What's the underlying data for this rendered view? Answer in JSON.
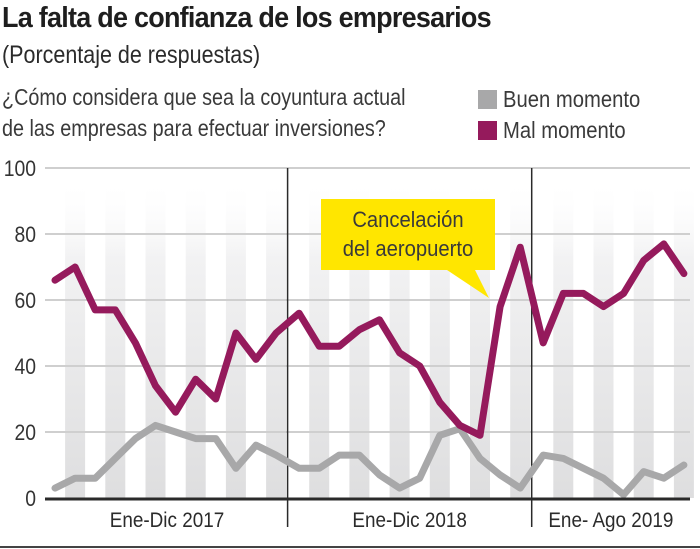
{
  "title": "La falta de confianza de los empresarios",
  "subtitle": "(Porcentaje de respuestas)",
  "question_lines": [
    "¿Cómo considera que sea la coyuntura actual",
    "de las empresas para efectuar inversiones?"
  ],
  "legend": [
    {
      "label": "Buen momento",
      "color": "#a8a8a9"
    },
    {
      "label": "Mal momento",
      "color": "#951a5c"
    }
  ],
  "annotation": {
    "lines": [
      "Cancelación",
      "del aeropuerto"
    ],
    "color": "#ffe600"
  },
  "chart_data": {
    "type": "line",
    "title": "La falta de confianza de los empresarios",
    "subtitle": "(Porcentaje de respuestas)",
    "xlabel": "",
    "ylabel": "",
    "ylim": [
      0,
      100
    ],
    "yticks": [
      0,
      20,
      40,
      60,
      80,
      100
    ],
    "grid": true,
    "legend_position": "top-right",
    "period_labels": [
      "Ene-Dic 2017",
      "Ene-Dic 2018",
      "Ene- Ago 2019"
    ],
    "period_lengths": [
      12,
      12,
      8
    ],
    "x": [
      "2017-01",
      "2017-02",
      "2017-03",
      "2017-04",
      "2017-05",
      "2017-06",
      "2017-07",
      "2017-08",
      "2017-09",
      "2017-10",
      "2017-11",
      "2017-12",
      "2018-01",
      "2018-02",
      "2018-03",
      "2018-04",
      "2018-05",
      "2018-06",
      "2018-07",
      "2018-08",
      "2018-09",
      "2018-10",
      "2018-11",
      "2018-12",
      "2019-01",
      "2019-02",
      "2019-03",
      "2019-04",
      "2019-05",
      "2019-06",
      "2019-07",
      "2019-08"
    ],
    "series": [
      {
        "name": "Buen momento",
        "color": "#a8a8a9",
        "values": [
          3,
          6,
          6,
          12,
          18,
          22,
          20,
          18,
          18,
          9,
          16,
          13,
          9,
          9,
          13,
          13,
          7,
          3,
          6,
          19,
          21,
          12,
          7,
          3,
          13,
          12,
          9,
          6,
          1,
          8,
          6,
          10
        ]
      },
      {
        "name": "Mal momento",
        "color": "#951a5c",
        "values": [
          66,
          70,
          57,
          57,
          47,
          34,
          26,
          36,
          30,
          50,
          42,
          50,
          56,
          46,
          46,
          51,
          54,
          44,
          40,
          29,
          22,
          19,
          58,
          76,
          47,
          62,
          62,
          58,
          62,
          72,
          77,
          68
        ]
      }
    ],
    "annotations": [
      {
        "text": "Cancelación del aeropuerto",
        "x": "2018-11"
      }
    ]
  }
}
